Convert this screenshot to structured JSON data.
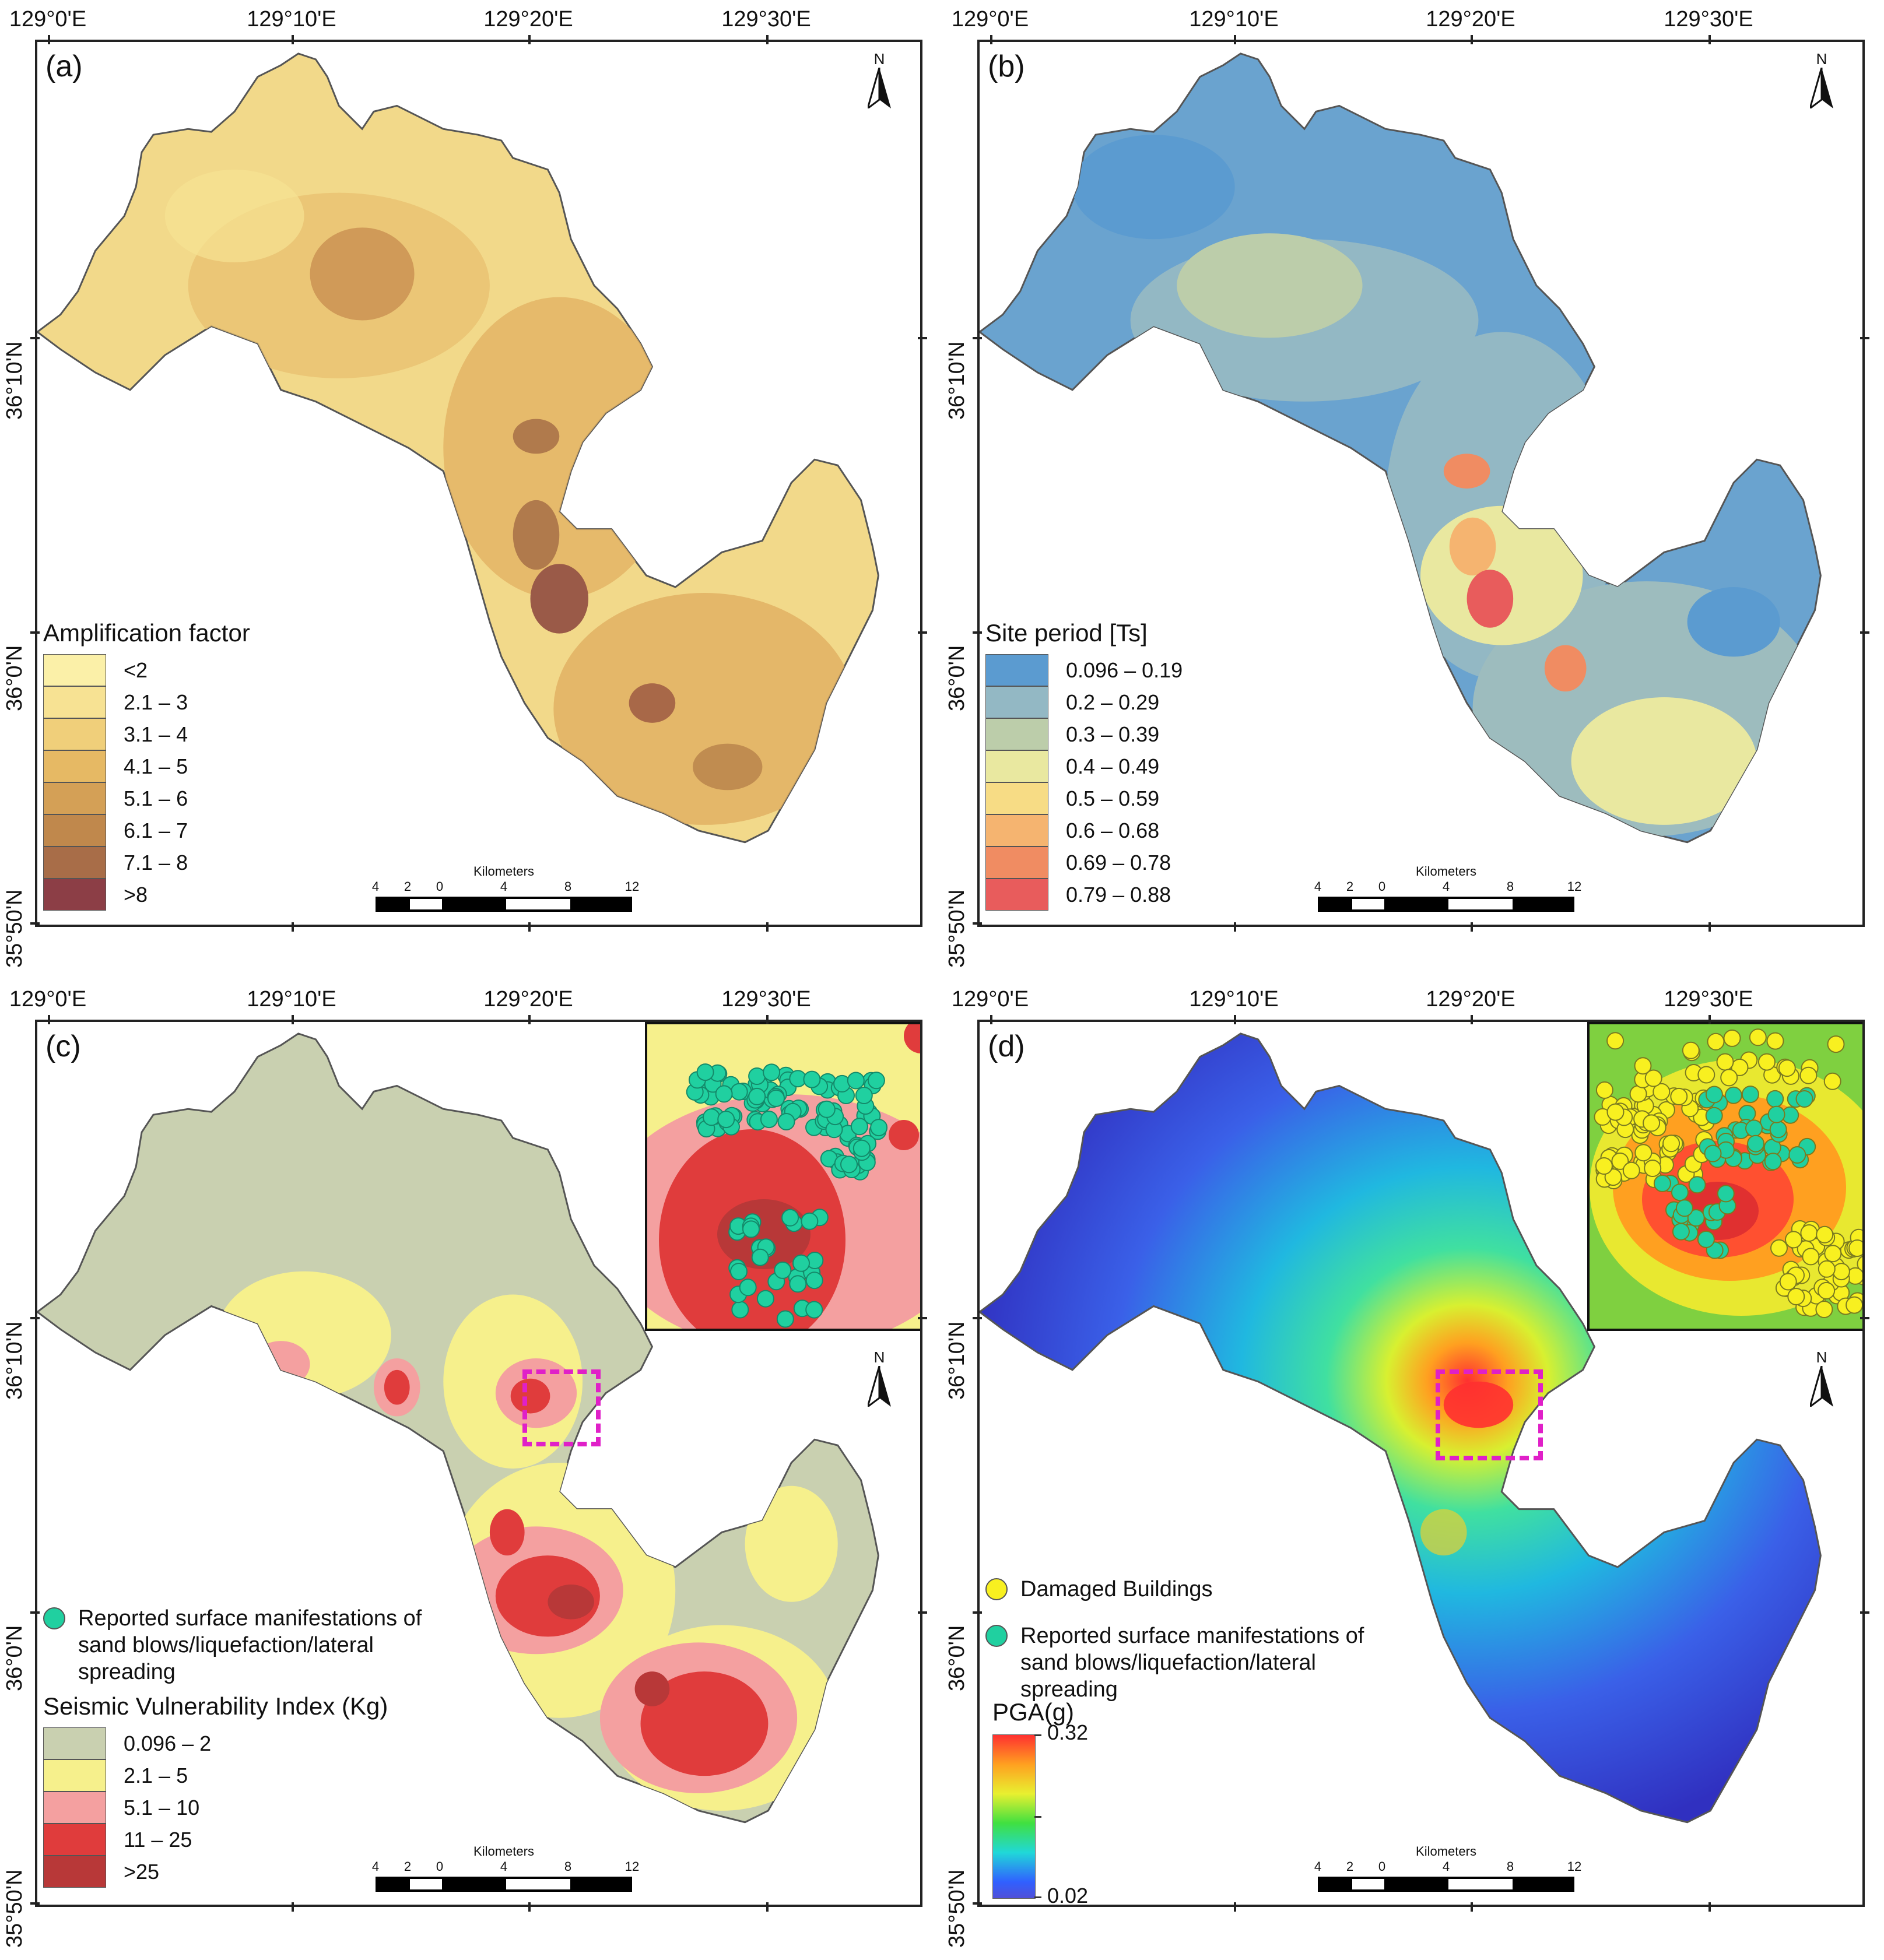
{
  "axes": {
    "lon_labels": [
      "129°0'E",
      "129°10'E",
      "129°20'E",
      "129°30'E"
    ],
    "lat_labels": [
      "36°10'N",
      "36°0'N",
      "35°50'N"
    ]
  },
  "north_symbol": "N",
  "scale_bar": {
    "unit": "Kilometers",
    "ticks": [
      "4",
      "2",
      "0",
      "4",
      "8",
      "12"
    ]
  },
  "panels": [
    {
      "label": "(a)",
      "legend_title": "Amplification factor",
      "legend_items": [
        {
          "label": "<2",
          "color": "#fbf0a8"
        },
        {
          "label": "2.1 – 3",
          "color": "#f7e293"
        },
        {
          "label": "3.1 – 4",
          "color": "#f0cf7a"
        },
        {
          "label": "4.1 – 5",
          "color": "#e6b964"
        },
        {
          "label": "5.1 – 6",
          "color": "#d4a056"
        },
        {
          "label": "6.1 – 7",
          "color": "#c0884c"
        },
        {
          "label": "7.1 – 8",
          "color": "#a86d48"
        },
        {
          "label": ">8",
          "color": "#8c3e46"
        }
      ]
    },
    {
      "label": "(b)",
      "legend_title": "Site period [Ts]",
      "legend_items": [
        {
          "label": "0.096 – 0.19",
          "color": "#5b9bd0"
        },
        {
          "label": "0.2 – 0.29",
          "color": "#93b8c4"
        },
        {
          "label": "0.3 – 0.39",
          "color": "#bccdaa"
        },
        {
          "label": "0.4 – 0.49",
          "color": "#e9e8a0"
        },
        {
          "label": "0.5 – 0.59",
          "color": "#f7dc85"
        },
        {
          "label": "0.6 – 0.68",
          "color": "#f5b470"
        },
        {
          "label": "0.69 – 0.78",
          "color": "#f08c62"
        },
        {
          "label": "0.79 – 0.88",
          "color": "#e85c5c"
        }
      ]
    },
    {
      "label": "(c)",
      "point_legend": [
        {
          "label": "Reported surface manifestations of sand blows/liquefaction/lateral spreading",
          "color": "#20d0a0"
        }
      ],
      "legend_title": "Seismic Vulnerability Index (Kg)",
      "legend_items": [
        {
          "label": "0.096 – 2",
          "color": "#c9d0b0"
        },
        {
          "label": "2.1 – 5",
          "color": "#f6f08c"
        },
        {
          "label": "5.1 – 10",
          "color": "#f4a0a0"
        },
        {
          "label": "11 – 25",
          "color": "#e03c3c"
        },
        {
          "label": ">25",
          "color": "#b83838"
        }
      ]
    },
    {
      "label": "(d)",
      "point_legend": [
        {
          "label": "Damaged Buildings",
          "color": "#f8f020"
        },
        {
          "label": "Reported surface manifestations of sand blows/liquefaction/lateral spreading",
          "color": "#20d0a0"
        }
      ],
      "legend_title": "PGA(g)",
      "pga_max": "0.32",
      "pga_min": "0.02"
    }
  ]
}
